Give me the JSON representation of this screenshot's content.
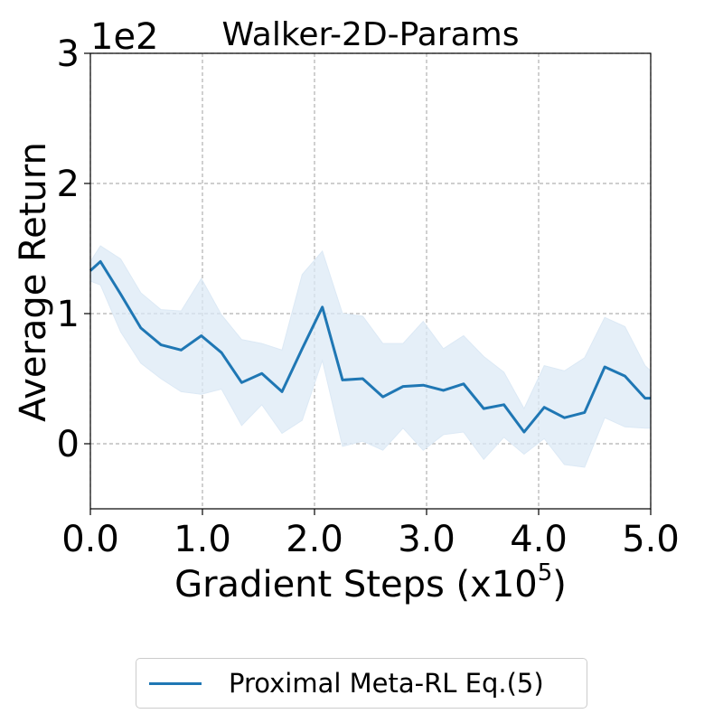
{
  "chart_data": {
    "type": "line",
    "title": "Walker-2D-Params",
    "xlabel": "Gradient Steps (x10",
    "xlabel_sup": "5",
    "xlabel_close": ")",
    "ylabel": "Average Return",
    "y_scale_label": "1e2",
    "xlim": [
      0.0,
      5.0
    ],
    "ylim": [
      -0.5,
      3.0
    ],
    "xticks": [
      0.0,
      1.0,
      2.0,
      3.0,
      4.0,
      5.0
    ],
    "xtick_labels": [
      "0.0",
      "1.0",
      "2.0",
      "3.0",
      "4.0",
      "5.0"
    ],
    "yticks": [
      0,
      1,
      2,
      3
    ],
    "ytick_labels": [
      "0",
      "1",
      "2",
      "3"
    ],
    "grid": true,
    "legend_position": "bottom-center",
    "colors": {
      "line": "#1f77b4",
      "band": "#dce9f5"
    },
    "series": [
      {
        "name": "Proximal Meta-RL Eq.(5)",
        "x": [
          0.0,
          0.09,
          0.27,
          0.45,
          0.63,
          0.81,
          0.99,
          1.17,
          1.35,
          1.53,
          1.71,
          1.89,
          2.07,
          2.25,
          2.43,
          2.61,
          2.79,
          2.97,
          3.15,
          3.33,
          3.51,
          3.69,
          3.87,
          4.05,
          4.23,
          4.41,
          4.59,
          4.77,
          4.95,
          5.0
        ],
        "y": [
          1.33,
          1.4,
          1.15,
          0.89,
          0.76,
          0.72,
          0.83,
          0.7,
          0.47,
          0.54,
          0.4,
          0.73,
          1.05,
          0.49,
          0.5,
          0.36,
          0.44,
          0.45,
          0.41,
          0.46,
          0.27,
          0.3,
          0.09,
          0.28,
          0.2,
          0.24,
          0.59,
          0.52,
          0.35,
          0.35
        ],
        "upper": [
          1.4,
          1.52,
          1.42,
          1.16,
          1.03,
          1.02,
          1.27,
          0.99,
          0.8,
          0.77,
          0.72,
          1.3,
          1.48,
          1.0,
          0.98,
          0.77,
          0.77,
          0.94,
          0.73,
          0.83,
          0.67,
          0.55,
          0.27,
          0.6,
          0.56,
          0.66,
          0.97,
          0.9,
          0.6,
          0.56
        ],
        "lower": [
          1.25,
          1.22,
          0.86,
          0.62,
          0.5,
          0.4,
          0.38,
          0.42,
          0.14,
          0.3,
          0.08,
          0.18,
          0.64,
          -0.02,
          0.02,
          -0.05,
          0.12,
          -0.05,
          0.07,
          0.09,
          -0.12,
          0.05,
          -0.08,
          0.04,
          -0.16,
          -0.18,
          0.2,
          0.13,
          0.12,
          0.12
        ]
      }
    ]
  }
}
